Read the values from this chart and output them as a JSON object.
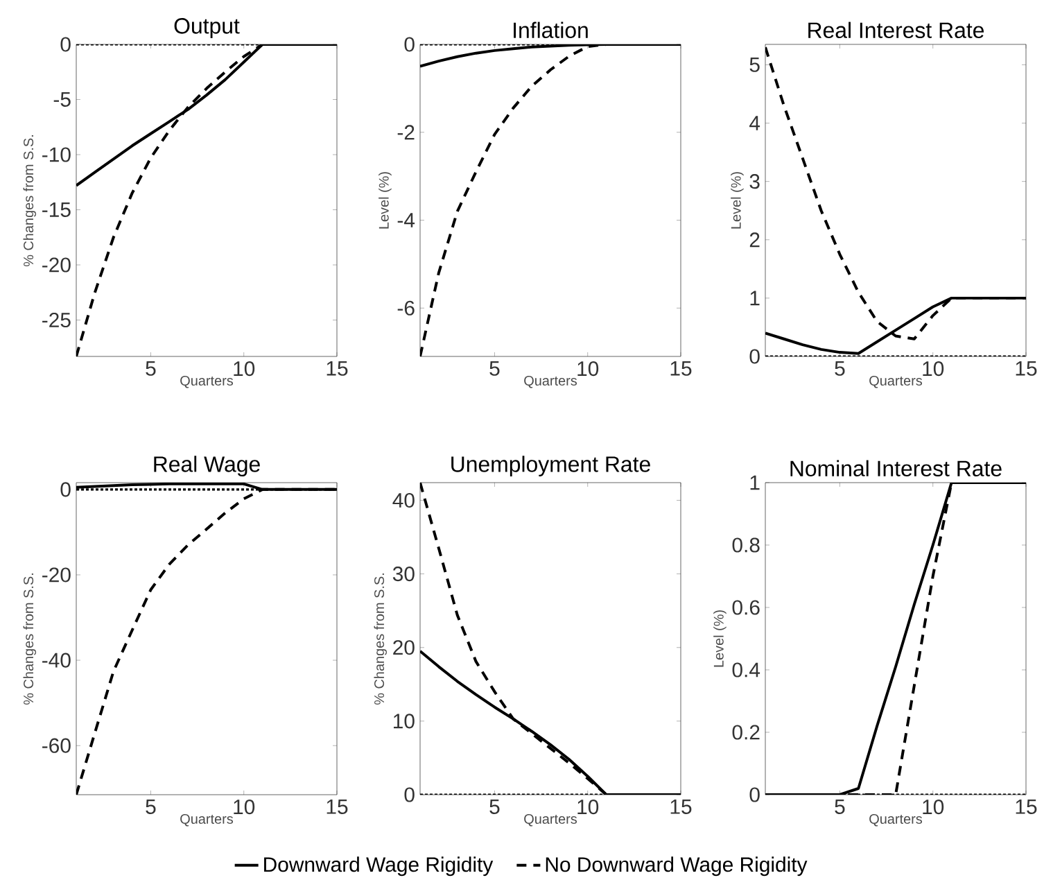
{
  "chart_data": [
    {
      "type": "line",
      "title": "Output",
      "xlabel": "Quarters",
      "ylabel": "% Changes from S.S.",
      "x": [
        1,
        2,
        3,
        4,
        5,
        6,
        7,
        8,
        9,
        10,
        11,
        12,
        13,
        14,
        15
      ],
      "xlim": [
        1,
        15
      ],
      "xticks": [
        5,
        10,
        15
      ],
      "ylim": [
        -28.3,
        0
      ],
      "yticks": [
        -25,
        -20,
        -15,
        -10,
        -5,
        0
      ],
      "series": [
        {
          "color": "#000000",
          "line_style": "solid",
          "values": [
            -12.8,
            -11.6,
            -10.4,
            -9.2,
            -8.1,
            -7.0,
            -5.9,
            -4.6,
            -3.2,
            -1.6,
            0,
            0,
            0,
            0,
            0
          ]
        },
        {
          "color": "#000000",
          "line_style": "dashed",
          "values": [
            -28.3,
            -22.5,
            -17.5,
            -13.5,
            -10.3,
            -7.8,
            -5.7,
            -4.0,
            -2.5,
            -1.1,
            0,
            0,
            0,
            0,
            0
          ]
        }
      ],
      "ref_lines": [
        {
          "axis": "y",
          "value": 0,
          "color": "#000000",
          "line_style": "dotted"
        }
      ]
    },
    {
      "type": "line",
      "title": "Inflation",
      "xlabel": "Quarters",
      "ylabel": "Level (%)",
      "x": [
        1,
        2,
        3,
        4,
        5,
        6,
        7,
        8,
        9,
        10,
        11,
        12,
        13,
        14,
        15
      ],
      "xlim": [
        1,
        15
      ],
      "xticks": [
        5,
        10,
        15
      ],
      "ylim": [
        -7.1,
        0
      ],
      "yticks": [
        -6,
        -4,
        -2,
        0
      ],
      "series": [
        {
          "color": "#000000",
          "line_style": "solid",
          "values": [
            -0.5,
            -0.38,
            -0.28,
            -0.2,
            -0.14,
            -0.1,
            -0.06,
            -0.04,
            -0.02,
            -0.01,
            0,
            0,
            0,
            0,
            0
          ]
        },
        {
          "color": "#000000",
          "line_style": "dashed",
          "values": [
            -7.1,
            -5.2,
            -3.8,
            -2.9,
            -2.05,
            -1.45,
            -0.95,
            -0.58,
            -0.27,
            -0.05,
            0,
            0,
            0,
            0,
            0
          ]
        }
      ],
      "ref_lines": [
        {
          "axis": "y",
          "value": 0,
          "color": "#000000",
          "line_style": "dotted"
        }
      ]
    },
    {
      "type": "line",
      "title": "Real Interest Rate",
      "xlabel": "Quarters",
      "ylabel": "Level (%)",
      "x": [
        1,
        2,
        3,
        4,
        5,
        6,
        7,
        8,
        9,
        10,
        11,
        12,
        13,
        14,
        15
      ],
      "xlim": [
        1,
        15
      ],
      "xticks": [
        5,
        10,
        15
      ],
      "ylim": [
        0,
        5.35
      ],
      "yticks": [
        0,
        1,
        2,
        3,
        4,
        5
      ],
      "series": [
        {
          "color": "#000000",
          "line_style": "solid",
          "values": [
            0.4,
            0.3,
            0.2,
            0.12,
            0.07,
            0.05,
            0.25,
            0.45,
            0.65,
            0.85,
            1,
            1,
            1,
            1,
            1
          ]
        },
        {
          "color": "#000000",
          "line_style": "dashed",
          "values": [
            5.3,
            4.3,
            3.4,
            2.5,
            1.75,
            1.1,
            0.6,
            0.35,
            0.3,
            0.7,
            1,
            1,
            1,
            1,
            1
          ]
        }
      ],
      "ref_lines": [
        {
          "axis": "y",
          "value": 0,
          "color": "#000000",
          "line_style": "dotted"
        }
      ]
    },
    {
      "type": "line",
      "title": "Real Wage",
      "xlabel": "Quarters",
      "ylabel": "% Changes from S.S.",
      "x": [
        1,
        2,
        3,
        4,
        5,
        6,
        7,
        8,
        9,
        10,
        11,
        12,
        13,
        14,
        15
      ],
      "xlim": [
        1,
        15
      ],
      "xticks": [
        5,
        10,
        15
      ],
      "ylim": [
        -71.5,
        1.6
      ],
      "yticks": [
        -60,
        -40,
        -20,
        0
      ],
      "series": [
        {
          "color": "#000000",
          "line_style": "solid",
          "values": [
            0.5,
            0.7,
            0.9,
            1.1,
            1.2,
            1.3,
            1.3,
            1.3,
            1.3,
            1.3,
            0,
            0,
            0,
            0,
            0
          ]
        },
        {
          "color": "#000000",
          "line_style": "dashed",
          "values": [
            -71.5,
            -57,
            -42.6,
            -33,
            -23.5,
            -17.5,
            -13,
            -9.3,
            -5.5,
            -2.2,
            0,
            0,
            0,
            0,
            0
          ]
        }
      ],
      "ref_lines": [
        {
          "axis": "y",
          "value": 0,
          "color": "#000000",
          "line_style": "dotted"
        }
      ]
    },
    {
      "type": "line",
      "title": "Unemployment Rate",
      "xlabel": "Quarters",
      "ylabel": "% Changes from S.S.",
      "x": [
        1,
        2,
        3,
        4,
        5,
        6,
        7,
        8,
        9,
        10,
        11,
        12,
        13,
        14,
        15
      ],
      "xlim": [
        1,
        15
      ],
      "xticks": [
        5,
        10,
        15
      ],
      "ylim": [
        0,
        42.4
      ],
      "yticks": [
        0,
        10,
        20,
        30,
        40
      ],
      "legend": "bottom",
      "series": [
        {
          "name": "Downward Wage Rigidity",
          "color": "#000000",
          "line_style": "solid",
          "values": [
            19.5,
            17.4,
            15.4,
            13.6,
            11.9,
            10.3,
            8.6,
            6.8,
            4.8,
            2.5,
            0,
            0,
            0,
            0,
            0
          ]
        },
        {
          "name": "No Downward Wage Rigidity",
          "color": "#000000",
          "line_style": "dashed",
          "values": [
            42.4,
            33.5,
            24.4,
            18.1,
            14,
            10.3,
            8.3,
            6.3,
            4.3,
            2.2,
            0,
            0,
            0,
            0,
            0
          ]
        }
      ],
      "ref_lines": [
        {
          "axis": "y",
          "value": 0,
          "color": "#000000",
          "line_style": "dotted"
        }
      ]
    },
    {
      "type": "line",
      "title": "Nominal Interest Rate",
      "xlabel": "Quarters",
      "ylabel": "Level (%)",
      "x": [
        1,
        2,
        3,
        4,
        5,
        6,
        7,
        8,
        9,
        10,
        11,
        12,
        13,
        14,
        15
      ],
      "xlim": [
        1,
        15
      ],
      "xticks": [
        5,
        10,
        15
      ],
      "ylim": [
        0,
        1
      ],
      "yticks": [
        0,
        0.2,
        0.4,
        0.6,
        0.8,
        1
      ],
      "series": [
        {
          "color": "#000000",
          "line_style": "solid",
          "values": [
            0,
            0,
            0,
            0,
            0,
            0.02,
            0.22,
            0.41,
            0.61,
            0.8,
            1,
            1,
            1,
            1,
            1
          ]
        },
        {
          "color": "#000000",
          "line_style": "dashed",
          "values": [
            0,
            0,
            0,
            0,
            0,
            0,
            0,
            0,
            0.35,
            0.7,
            1,
            1,
            1,
            1,
            1
          ]
        }
      ],
      "ref_lines": [
        {
          "axis": "y",
          "value": 0,
          "color": "#000000",
          "line_style": "dotted"
        }
      ]
    }
  ]
}
